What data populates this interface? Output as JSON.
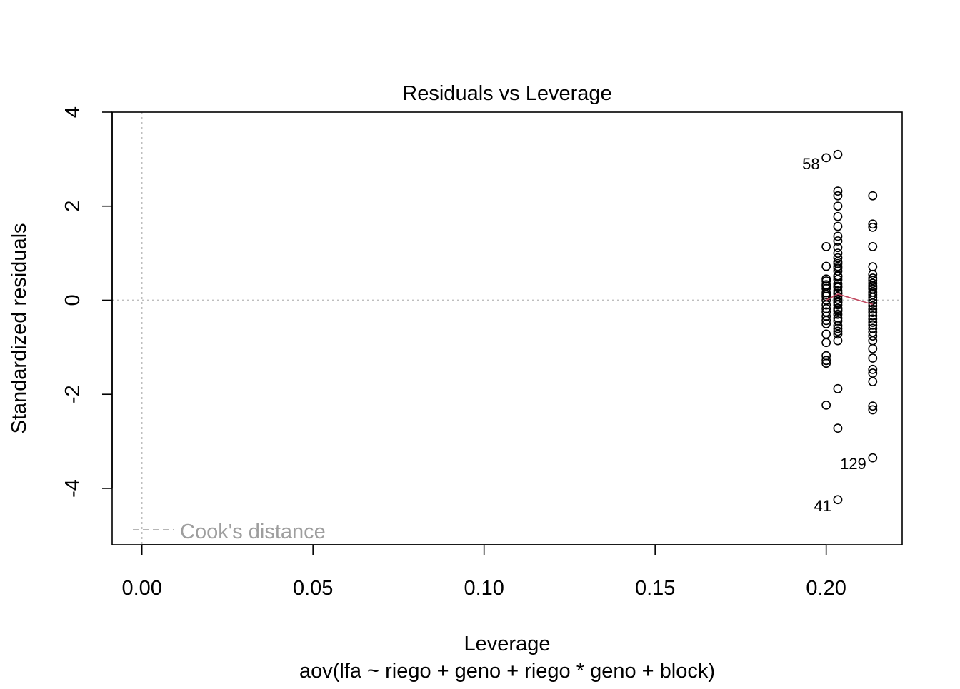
{
  "chart_data": {
    "type": "scatter",
    "title": "Residuals vs Leverage",
    "xlabel": "Leverage",
    "sublabel": "aov(lfa ~ riego + geno + riego * geno + block)",
    "ylabel": "Standardized residuals",
    "xlim": [
      -0.0087,
      0.2222
    ],
    "ylim": [
      -5.2,
      4.0
    ],
    "x_ticks": [
      0.0,
      0.05,
      0.1,
      0.15,
      0.2
    ],
    "x_tick_labels": [
      "0.00",
      "0.05",
      "0.10",
      "0.15",
      "0.20"
    ],
    "y_ticks": [
      -4,
      -2,
      0,
      2,
      4
    ],
    "y_tick_labels": [
      "-4",
      "-2",
      "0",
      "2",
      "4"
    ],
    "reference_lines": {
      "x": 0,
      "y": 0
    },
    "legend": {
      "label": "Cook's distance",
      "position": "bottom-left"
    },
    "colors": {
      "points": "#000000",
      "smoother": "#c2465e",
      "reference": "#bebebe",
      "legend_text": "#9e9e9e"
    },
    "series": [
      {
        "x": [
          0.2,
          0.2,
          0.2,
          0.2,
          0.2,
          0.2,
          0.2,
          0.2,
          0.2,
          0.2,
          0.2,
          0.2,
          0.2,
          0.2,
          0.2,
          0.2,
          0.2,
          0.2,
          0.2,
          0.2,
          0.2,
          0.2,
          0.2,
          0.2,
          0.2034,
          0.2034,
          0.2034,
          0.2034,
          0.2034,
          0.2034,
          0.2034,
          0.2034,
          0.2034,
          0.2034,
          0.2034,
          0.2034,
          0.2034,
          0.2034,
          0.2034,
          0.2034,
          0.2034,
          0.2034,
          0.2034,
          0.2034,
          0.2034,
          0.2034,
          0.2034,
          0.2034,
          0.2034,
          0.2034,
          0.2034,
          0.2034,
          0.2034,
          0.2034,
          0.2034,
          0.2034,
          0.2034,
          0.2034,
          0.2034,
          0.2034,
          0.2034,
          0.2034,
          0.2034,
          0.2034,
          0.2034,
          0.2034,
          0.2034,
          0.2034,
          0.2136,
          0.2136,
          0.2136,
          0.2136,
          0.2136,
          0.2136,
          0.2136,
          0.2136,
          0.2136,
          0.2136,
          0.2136,
          0.2136,
          0.2136,
          0.2136,
          0.2136,
          0.2136,
          0.2136,
          0.2136,
          0.2136,
          0.2136,
          0.2136,
          0.2136,
          0.2136,
          0.2136,
          0.2136,
          0.2136,
          0.2136,
          0.2136,
          0.2136,
          0.2136,
          0.2136,
          0.2136,
          0.2136,
          0.2136,
          0.2136,
          0.2136
        ],
        "y": [
          3.03,
          1.14,
          0.72,
          0.41,
          0.33,
          0.25,
          0.16,
          0.08,
          0.0,
          -0.1,
          -0.18,
          -0.25,
          -0.34,
          -0.43,
          -0.5,
          0.3,
          0.45,
          0.12,
          -0.72,
          -0.9,
          -1.18,
          -1.28,
          -1.34,
          -2.23,
          3.1,
          2.32,
          2.22,
          2.0,
          1.78,
          1.57,
          1.36,
          1.26,
          1.12,
          1.0,
          0.9,
          0.82,
          0.72,
          0.62,
          0.52,
          0.44,
          0.35,
          0.27,
          0.2,
          0.14,
          0.08,
          0.02,
          -0.04,
          -0.1,
          -0.17,
          -0.23,
          -0.3,
          -0.38,
          -0.44,
          -0.54,
          -0.6,
          -0.66,
          -0.72,
          0.78,
          0.68,
          0.5,
          0.3,
          0.15,
          -0.05,
          -0.2,
          -0.86,
          -1.88,
          -2.72,
          -4.24,
          2.22,
          1.62,
          1.55,
          1.14,
          0.71,
          0.55,
          0.47,
          0.42,
          0.36,
          0.31,
          0.24,
          0.17,
          0.12,
          0.06,
          0.0,
          -0.06,
          -0.12,
          -0.19,
          -0.26,
          -0.33,
          -0.4,
          -0.47,
          -0.53,
          -0.6,
          -0.68,
          -0.76,
          -0.86,
          -1.03,
          -1.23,
          -1.47,
          -1.55,
          -1.73,
          -2.25,
          -2.33,
          -3.35,
          0.28
        ]
      }
    ],
    "smoother": {
      "x": [
        0.2,
        0.2034,
        0.2136
      ],
      "y": [
        0.0,
        0.13,
        -0.09
      ]
    },
    "annotations": [
      {
        "label": "58",
        "x": 0.2,
        "y": 3.03
      },
      {
        "label": "129",
        "x": 0.2136,
        "y": -3.35
      },
      {
        "label": "41",
        "x": 0.2034,
        "y": -4.24
      }
    ]
  }
}
